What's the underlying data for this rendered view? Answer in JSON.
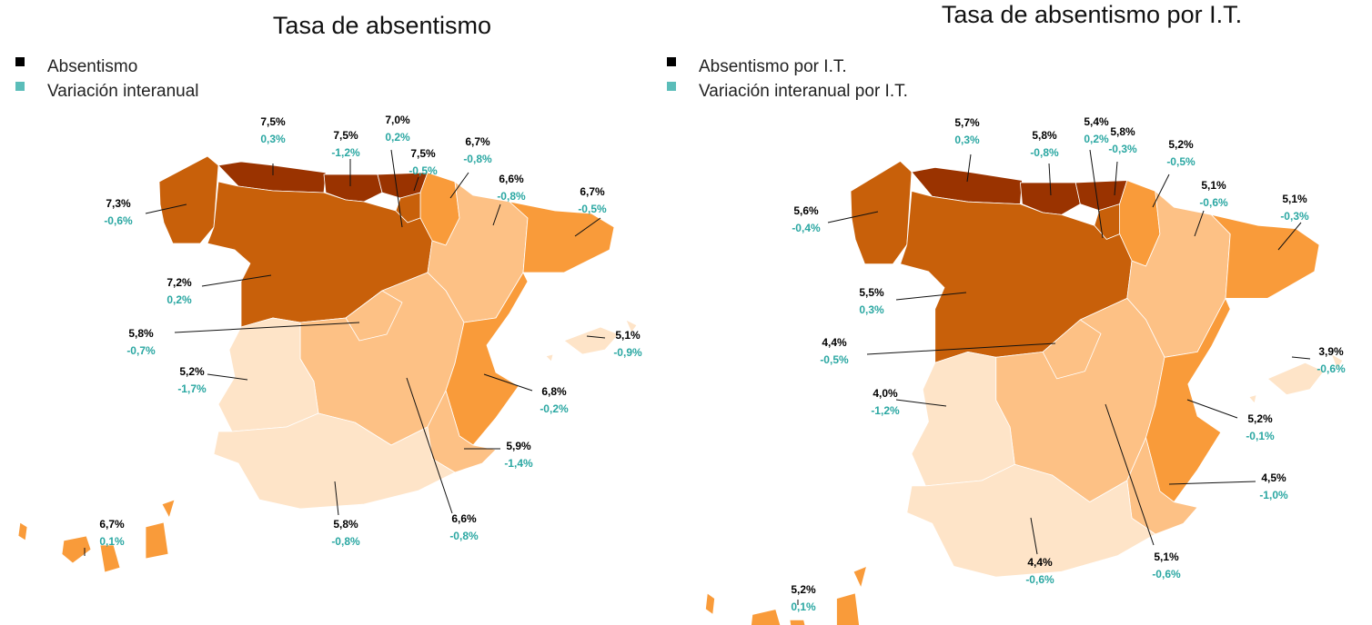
{
  "maps": [
    {
      "title": "Tasa de absentismo",
      "legend": [
        {
          "label": "Absentismo",
          "color": "#000000"
        },
        {
          "label": "Variación interanual",
          "color": "#5bbdb9"
        }
      ],
      "regions": [
        {
          "value": "7,3%",
          "variation": "-0,6%",
          "color": "#c8600a"
        },
        {
          "value": "7,5%",
          "variation": "0,3%",
          "color": "#9a3300"
        },
        {
          "value": "7,5%",
          "variation": "-1,2%",
          "color": "#9a3300"
        },
        {
          "value": "7,5%",
          "variation": "-0,5%",
          "color": "#9a3300"
        },
        {
          "value": "6,7%",
          "variation": "-0,8%",
          "color": "#f99b3a"
        },
        {
          "value": "7,0%",
          "variation": "0,2%",
          "color": "#c8600a"
        },
        {
          "value": "7,2%",
          "variation": "0,2%",
          "color": "#c8600a"
        },
        {
          "value": "6,6%",
          "variation": "-0,8%",
          "color": "#fdc185"
        },
        {
          "value": "6,7%",
          "variation": "-0,5%",
          "color": "#f99b3a"
        },
        {
          "value": "6,6%",
          "variation": "-0,8%",
          "color": "#fdc185"
        },
        {
          "value": "5,8%",
          "variation": "-0,7%",
          "color": "#fdc185"
        },
        {
          "value": "6,8%",
          "variation": "-0,2%",
          "color": "#f99b3a"
        },
        {
          "value": "5,9%",
          "variation": "-1,4%",
          "color": "#fdc185"
        },
        {
          "value": "5,2%",
          "variation": "-1,7%",
          "color": "#fee4c8"
        },
        {
          "value": "5,8%",
          "variation": "-0,8%",
          "color": "#fee4c8"
        },
        {
          "value": "5,1%",
          "variation": "-0,9%",
          "color": "#fee4c8"
        },
        {
          "value": "6,7%",
          "variation": "0,1%",
          "color": "#f99b3a"
        }
      ]
    },
    {
      "title": "Tasa de absentismo por I.T.",
      "legend": [
        {
          "label": "Absentismo por I.T.",
          "color": "#000000"
        },
        {
          "label": "Variación interanual por I.T.",
          "color": "#5bbdb9"
        }
      ],
      "regions": [
        {
          "value": "5,6%",
          "variation": "-0,4%",
          "color": "#c8600a"
        },
        {
          "value": "5,7%",
          "variation": "0,3%",
          "color": "#9a3300"
        },
        {
          "value": "5,8%",
          "variation": "-0,8%",
          "color": "#9a3300"
        },
        {
          "value": "5,8%",
          "variation": "-0,3%",
          "color": "#9a3300"
        },
        {
          "value": "5,2%",
          "variation": "-0,5%",
          "color": "#f99b3a"
        },
        {
          "value": "5,4%",
          "variation": "0,2%",
          "color": "#c8600a"
        },
        {
          "value": "5,5%",
          "variation": "0,3%",
          "color": "#c8600a"
        },
        {
          "value": "5,1%",
          "variation": "-0,6%",
          "color": "#fdc185"
        },
        {
          "value": "5,1%",
          "variation": "-0,3%",
          "color": "#f99b3a"
        },
        {
          "value": "5,1%",
          "variation": "-0,6%",
          "color": "#fdc185"
        },
        {
          "value": "4,4%",
          "variation": "-0,5%",
          "color": "#fdc185"
        },
        {
          "value": "5,2%",
          "variation": "-0,1%",
          "color": "#f99b3a"
        },
        {
          "value": "4,5%",
          "variation": "-1,0%",
          "color": "#fdc185"
        },
        {
          "value": "4,0%",
          "variation": "-1,2%",
          "color": "#fee4c8"
        },
        {
          "value": "4,4%",
          "variation": "-0,6%",
          "color": "#fee4c8"
        },
        {
          "value": "3,9%",
          "variation": "-0,6%",
          "color": "#fee4c8"
        },
        {
          "value": "5,2%",
          "variation": "0,1%",
          "color": "#f99b3a"
        }
      ]
    }
  ]
}
